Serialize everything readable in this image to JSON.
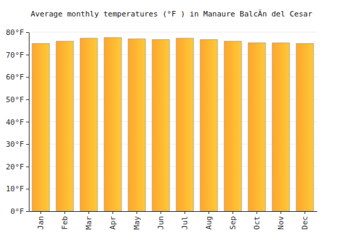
{
  "chart_data": {
    "type": "bar",
    "title": "Average monthly temperatures (°F ) in Manaure BalcÃn del Cesar",
    "categories": [
      "Jan",
      "Feb",
      "Mar",
      "Apr",
      "May",
      "Jun",
      "Jul",
      "Aug",
      "Sep",
      "Oct",
      "Nov",
      "Dec"
    ],
    "values": [
      75,
      76,
      77.3,
      77.6,
      77,
      76.7,
      77.3,
      76.7,
      76,
      75.3,
      75.2,
      75
    ],
    "color": "#ffa62b",
    "ylim": [
      0,
      80
    ],
    "yticks": [
      {
        "value": 0,
        "label": "0°F"
      },
      {
        "value": 10,
        "label": "10°F"
      },
      {
        "value": 20,
        "label": "20°F"
      },
      {
        "value": 30,
        "label": "30°F"
      },
      {
        "value": 40,
        "label": "40°F"
      },
      {
        "value": 50,
        "label": "50°F"
      },
      {
        "value": 60,
        "label": "60°F"
      },
      {
        "value": 70,
        "label": "70°F"
      },
      {
        "value": 80,
        "label": "80°F"
      }
    ],
    "grid": true
  }
}
